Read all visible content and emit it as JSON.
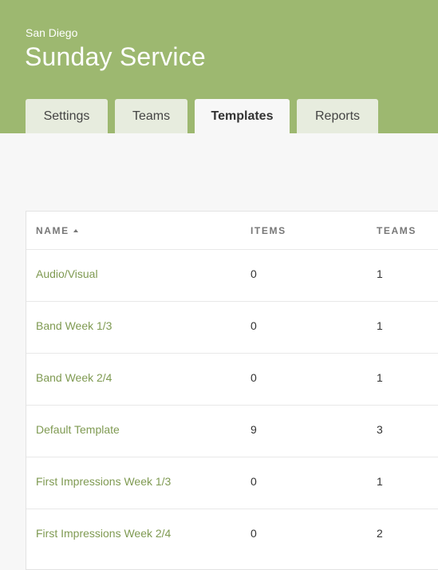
{
  "header": {
    "subtitle": "San Diego",
    "title": "Sunday Service",
    "background_color": "#9db870"
  },
  "tabs": [
    {
      "label": "Settings",
      "active": false
    },
    {
      "label": "Teams",
      "active": false
    },
    {
      "label": "Templates",
      "active": true
    },
    {
      "label": "Reports",
      "active": false
    }
  ],
  "table": {
    "columns": {
      "name": "NAME",
      "items": "ITEMS",
      "teams": "TEAMS"
    },
    "sort": {
      "column": "name",
      "direction": "ascending",
      "icon": "sort-up-icon"
    },
    "rows": [
      {
        "name": "Audio/Visual",
        "items": "0",
        "teams": "1"
      },
      {
        "name": "Band Week 1/3",
        "items": "0",
        "teams": "1"
      },
      {
        "name": "Band Week 2/4",
        "items": "0",
        "teams": "1"
      },
      {
        "name": "Default Template",
        "items": "9",
        "teams": "3"
      },
      {
        "name": "First Impressions Week 1/3",
        "items": "0",
        "teams": "1"
      },
      {
        "name": "First Impressions Week 2/4",
        "items": "0",
        "teams": "2"
      }
    ]
  },
  "colors": {
    "accent": "#9db870",
    "link": "#7f9a52"
  }
}
